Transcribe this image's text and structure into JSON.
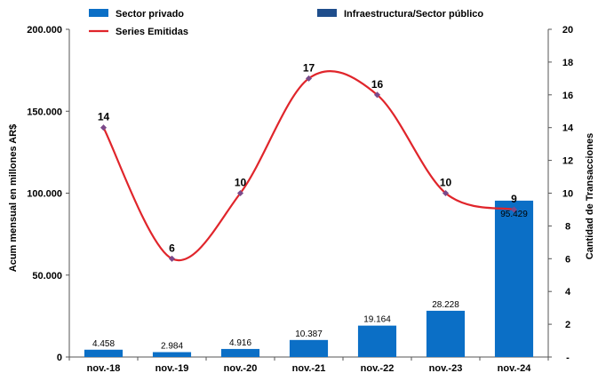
{
  "chart_data": {
    "type": "bar",
    "categories": [
      "nov.-18",
      "nov.-19",
      "nov.-20",
      "nov.-21",
      "nov.-22",
      "nov.-23",
      "nov.-24"
    ],
    "series": [
      {
        "name": "Sector privado",
        "type": "bar",
        "axis": "left",
        "color": "#0b6fc6",
        "values": [
          4458,
          2984,
          4916,
          10387,
          19164,
          28228,
          95429
        ],
        "labels": [
          "4.458",
          "2.984",
          "4.916",
          "10.387",
          "19.164",
          "28.228",
          "95.429"
        ]
      },
      {
        "name": "Infraestructura/Sector público",
        "type": "bar",
        "axis": "left",
        "color": "#1f4e8c",
        "values": [
          0,
          0,
          0,
          0,
          0,
          0,
          0
        ]
      },
      {
        "name": "Series Emitidas",
        "type": "line",
        "axis": "right",
        "color": "#e0252b",
        "marker_color": "#7b4a8a",
        "values": [
          14,
          6,
          10,
          17,
          16,
          10,
          9
        ],
        "labels": [
          "14",
          "6",
          "10",
          "17",
          "16",
          "10",
          "9"
        ]
      }
    ],
    "ylabel": "Acum mensual en millones AR$",
    "y2label": "Cantidad de Transacciones",
    "ylim": [
      0,
      200000
    ],
    "y2lim": [
      0,
      20
    ],
    "yticks": [
      {
        "value": 0,
        "label": "0"
      },
      {
        "value": 50000,
        "label": "50.000"
      },
      {
        "value": 100000,
        "label": "100.000"
      },
      {
        "value": 150000,
        "label": "150.000"
      },
      {
        "value": 200000,
        "label": "200.000"
      }
    ],
    "y2ticks": [
      {
        "value": 0,
        "label": "-"
      },
      {
        "value": 2,
        "label": "2"
      },
      {
        "value": 4,
        "label": "4"
      },
      {
        "value": 6,
        "label": "6"
      },
      {
        "value": 8,
        "label": "8"
      },
      {
        "value": 10,
        "label": "10"
      },
      {
        "value": 12,
        "label": "12"
      },
      {
        "value": 14,
        "label": "14"
      },
      {
        "value": 16,
        "label": "16"
      },
      {
        "value": 18,
        "label": "18"
      },
      {
        "value": 20,
        "label": "20"
      }
    ],
    "grid": false,
    "legend_position": "top"
  }
}
